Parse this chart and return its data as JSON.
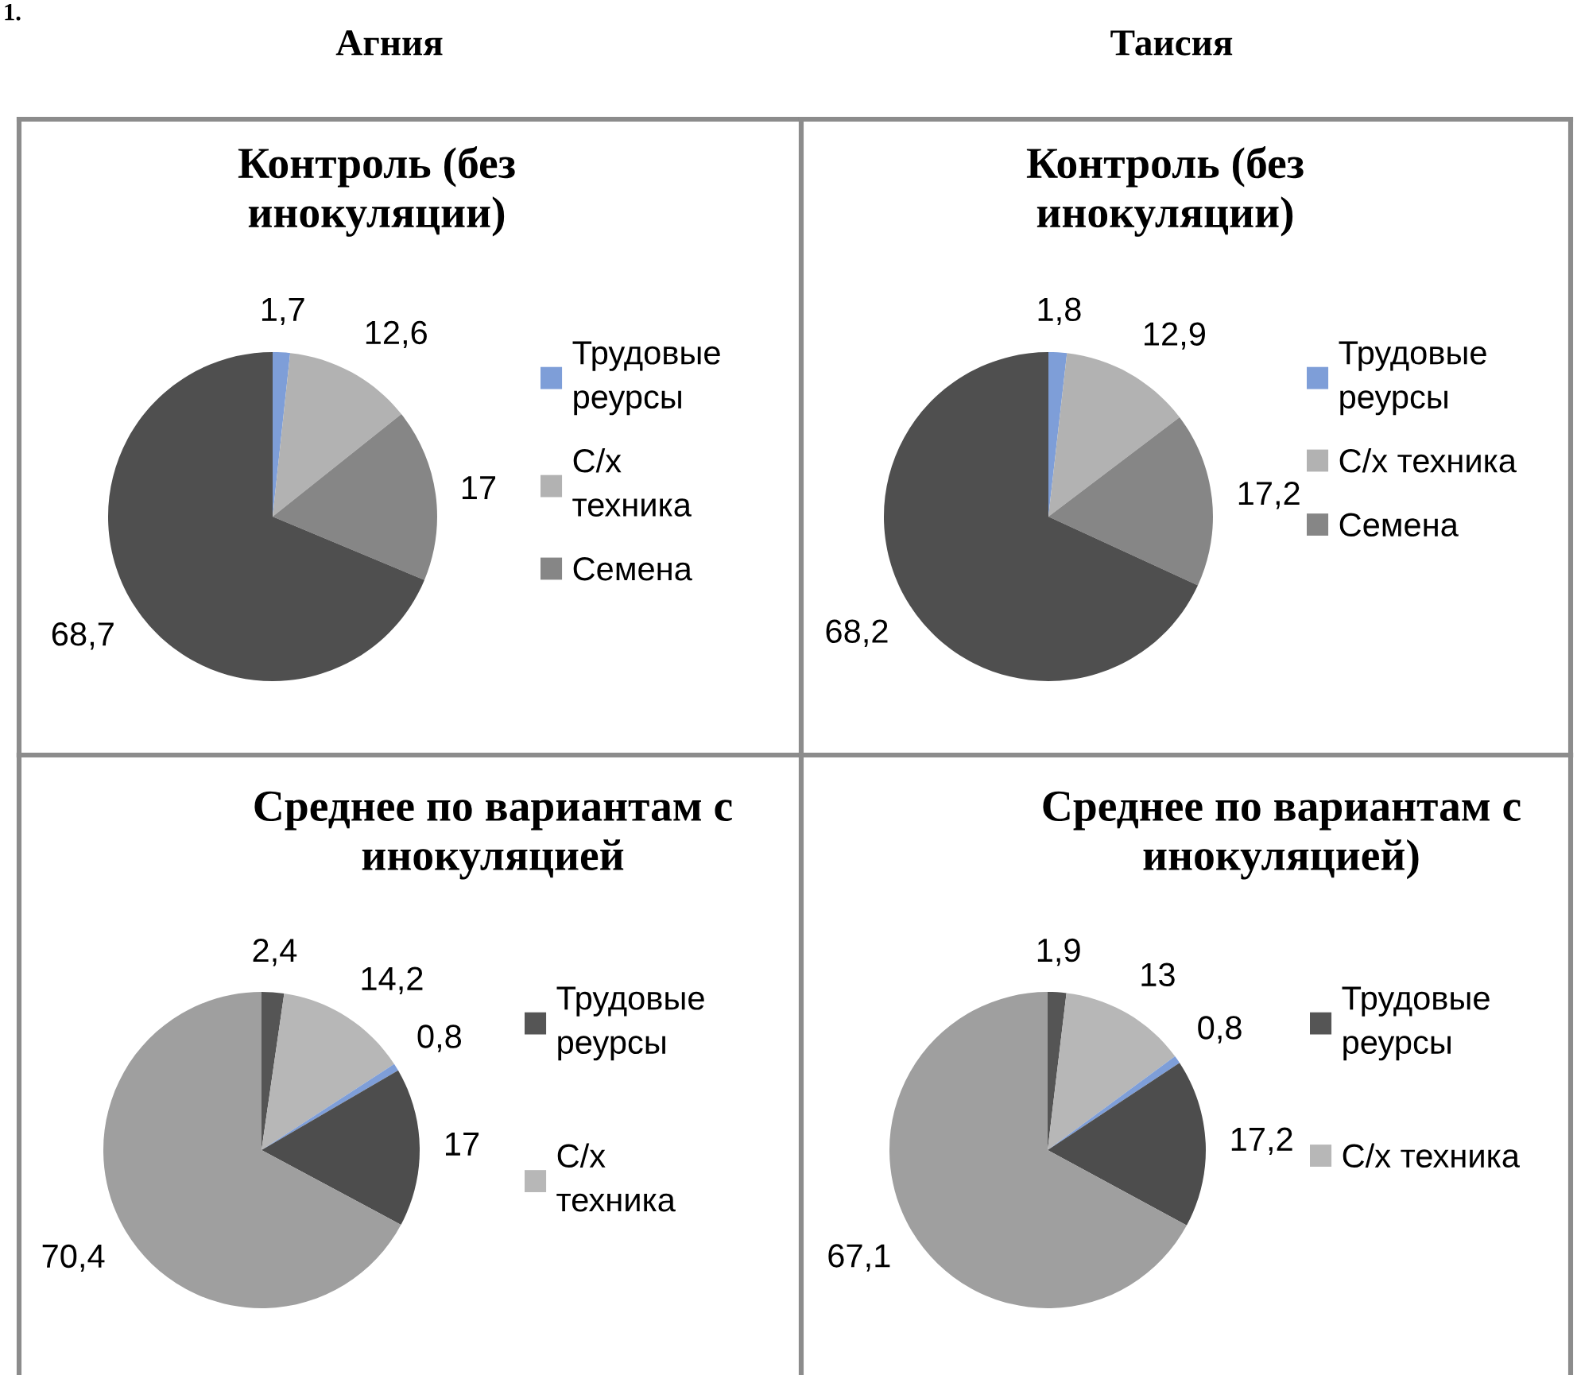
{
  "chart_data": [
    {
      "type": "pie",
      "title": "Контроль (без инокуляции)",
      "annotations": [
        "1.",
        "Агния"
      ],
      "categories": [
        "Трудовые реурсы",
        "С/х техника",
        "Семена",
        null
      ],
      "values": [
        1.7,
        12.6,
        17,
        68.7
      ],
      "value_labels": [
        "1,7",
        "12,6",
        "17",
        "68,7"
      ],
      "colors": [
        "#7e9ed8",
        "#b2b2b2",
        "#868686",
        "#4f4f4f"
      ],
      "legend": "right"
    },
    {
      "type": "pie",
      "title": "Контроль (без инокуляции)",
      "annotations": [
        "Таисия"
      ],
      "categories": [
        "Трудовые реурсы",
        "С/х техника",
        "Семена",
        null
      ],
      "values": [
        1.8,
        12.9,
        17.2,
        68.2
      ],
      "value_labels": [
        "1,8",
        "12,9",
        "17,2",
        "68,2"
      ],
      "colors": [
        "#7e9ed8",
        "#b2b2b2",
        "#868686",
        "#4f4f4f"
      ],
      "legend": "right"
    },
    {
      "type": "pie",
      "title": "Среднее по вариантам с инокуляцией",
      "categories": [
        "Трудовые реурсы",
        "С/х техника",
        null,
        null,
        null
      ],
      "values": [
        2.4,
        14.2,
        0.8,
        17,
        70.4
      ],
      "value_labels": [
        "2,4",
        "14,2",
        "0,8",
        "17",
        "70,4"
      ],
      "colors": [
        "#555555",
        "#b7b7b7",
        "#7e9ed8",
        "#4d4d4d",
        "#9f9f9f"
      ],
      "legend": "right"
    },
    {
      "type": "pie",
      "title": "Среднее по вариантам с инокуляцией)",
      "categories": [
        "Трудовые реурсы",
        "С/х техника",
        null,
        null,
        null
      ],
      "values": [
        1.9,
        13,
        0.8,
        17.2,
        67.1
      ],
      "value_labels": [
        "1,9",
        "13",
        "0,8",
        "17,2",
        "67,1"
      ],
      "colors": [
        "#555555",
        "#b7b7b7",
        "#7e9ed8",
        "#4d4d4d",
        "#9f9f9f"
      ],
      "legend": "right"
    }
  ]
}
